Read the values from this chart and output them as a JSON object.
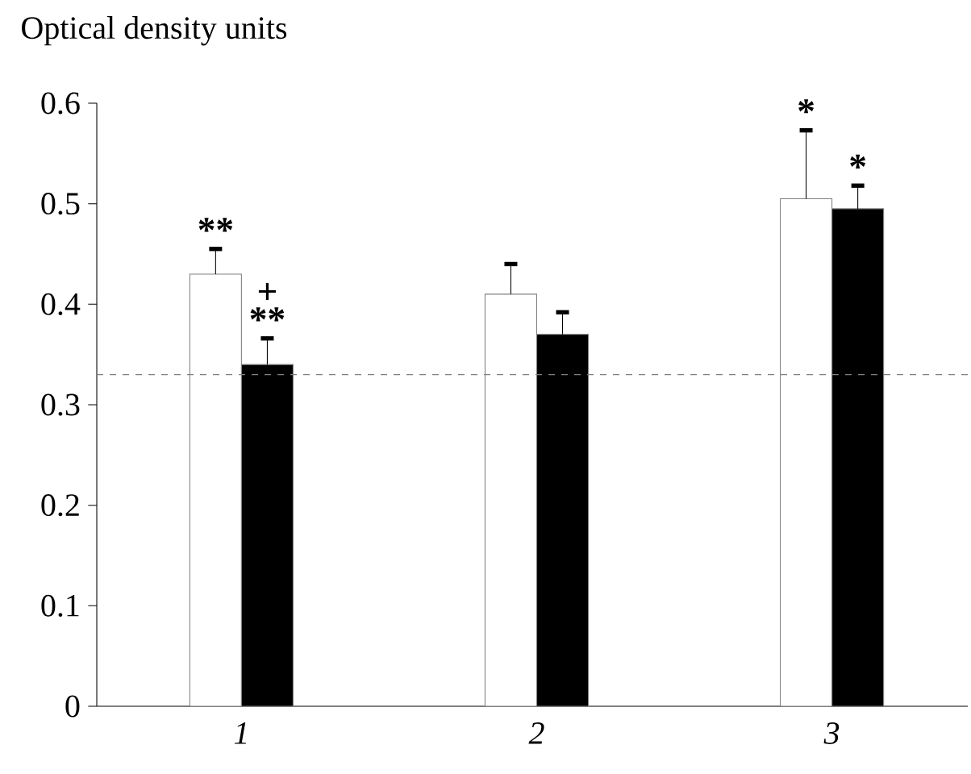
{
  "chart_data": {
    "type": "bar",
    "ylabel": "Optical density units",
    "categories": [
      "1",
      "2",
      "3"
    ],
    "series": [
      {
        "color": "#ffffff",
        "values": [
          0.43,
          0.41,
          0.505
        ],
        "errors": [
          [
            0.43,
            0.455
          ],
          [
            0.41,
            0.44
          ],
          [
            0.505,
            0.573
          ]
        ]
      },
      {
        "color": "#000000",
        "values": [
          0.34,
          0.37,
          0.495
        ],
        "errors": [
          [
            0.34,
            0.366
          ],
          [
            0.37,
            0.392
          ],
          [
            0.495,
            0.518
          ]
        ]
      }
    ],
    "ylim": [
      0,
      0.6
    ],
    "yticks": [
      0,
      0.1,
      0.2,
      0.3,
      0.4,
      0.5,
      0.6
    ],
    "ref_lines": [
      {
        "axis": "y",
        "value": 0.33,
        "line_style": "dashed"
      }
    ],
    "annotations": [
      {
        "text": "**",
        "x": "1",
        "y": 0.43
      },
      {
        "text": "**",
        "x": "1",
        "y": 0.34
      },
      {
        "text": "+",
        "x": "1",
        "y": 0.34
      },
      {
        "text": "*",
        "x": "3",
        "y": 0.505
      },
      {
        "text": "*",
        "x": "3",
        "y": 0.495
      }
    ]
  }
}
